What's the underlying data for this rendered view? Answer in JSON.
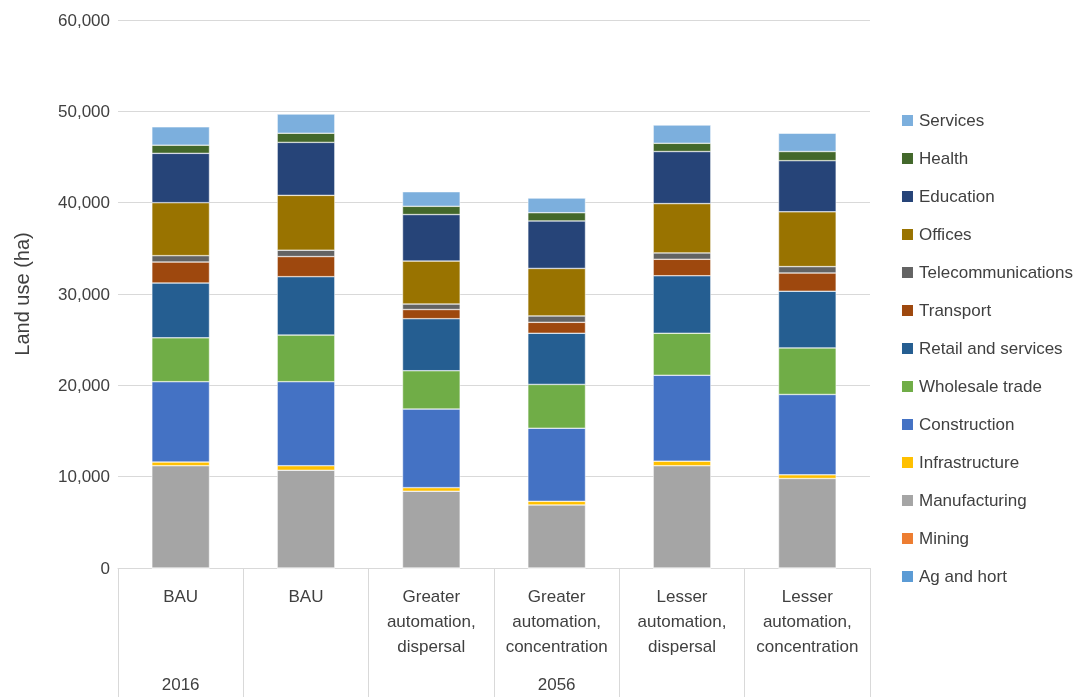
{
  "chart_data": {
    "type": "bar",
    "stacked": true,
    "ylabel": "Land use (ha)",
    "categories": [
      "BAU",
      "BAU",
      "Greater automation, dispersal",
      "Greater automation, concentration",
      "Lesser automation, dispersal",
      "Lesser automation, concentration"
    ],
    "annotations": [
      "2016",
      "2056"
    ],
    "ylim": [
      0,
      60000
    ],
    "yticks": [
      {
        "value": 0,
        "label": "0"
      },
      {
        "value": 10000,
        "label": "10,000"
      },
      {
        "value": 20000,
        "label": "20,000"
      },
      {
        "value": 30000,
        "label": "30,000"
      },
      {
        "value": 40000,
        "label": "40,000"
      },
      {
        "value": 50000,
        "label": "50,000"
      },
      {
        "value": 60000,
        "label": "60,000"
      }
    ],
    "grid": "y",
    "legend": "right",
    "series": [
      {
        "name": "Ag and hort",
        "color": "#5b9bd5",
        "values": [
          0,
          0,
          0,
          0,
          0,
          0
        ]
      },
      {
        "name": "Mining",
        "color": "#ed7d31",
        "values": [
          0,
          0,
          0,
          0,
          0,
          0
        ]
      },
      {
        "name": "Manufacturing",
        "color": "#a5a5a5",
        "values": [
          11200,
          10700,
          8400,
          6900,
          11200,
          9800
        ]
      },
      {
        "name": "Infrastructure",
        "color": "#ffc000",
        "values": [
          400,
          500,
          400,
          400,
          500,
          400
        ]
      },
      {
        "name": "Construction",
        "color": "#4472c4",
        "values": [
          8800,
          9200,
          8600,
          8000,
          9400,
          8800
        ]
      },
      {
        "name": "Wholesale trade",
        "color": "#70ad47",
        "values": [
          4800,
          5100,
          4200,
          4800,
          4600,
          5100
        ]
      },
      {
        "name": "Retail and services",
        "color": "#255e91",
        "values": [
          6000,
          6400,
          5700,
          5600,
          6300,
          6200
        ]
      },
      {
        "name": "Transport",
        "color": "#9e480e",
        "values": [
          2300,
          2200,
          1000,
          1200,
          1800,
          2000
        ]
      },
      {
        "name": "Telecommunications",
        "color": "#636363",
        "values": [
          700,
          700,
          600,
          700,
          700,
          700
        ]
      },
      {
        "name": "Offices",
        "color": "#997300",
        "values": [
          5800,
          6000,
          4700,
          5200,
          5400,
          6000
        ]
      },
      {
        "name": "Education",
        "color": "#264478",
        "values": [
          5400,
          5800,
          5100,
          5200,
          5700,
          5600
        ]
      },
      {
        "name": "Health",
        "color": "#43682b",
        "values": [
          900,
          1000,
          900,
          900,
          900,
          1000
        ]
      },
      {
        "name": "Services",
        "color": "#7cafdd",
        "values": [
          2000,
          2100,
          1600,
          1600,
          2000,
          2000
        ]
      }
    ]
  }
}
